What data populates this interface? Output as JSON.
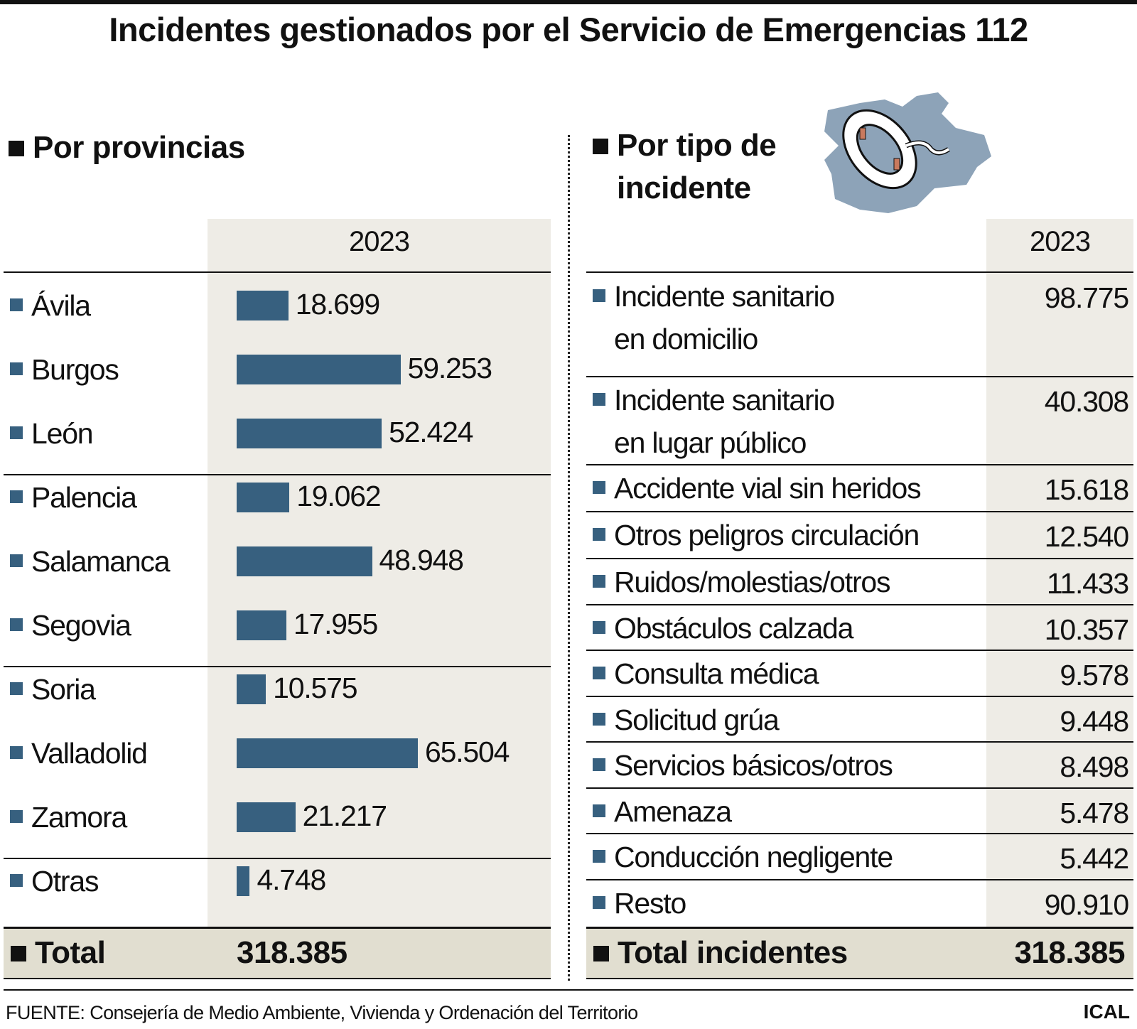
{
  "title": "Incidentes gestionados por el Servicio de Emergencias 112",
  "colors": {
    "bar": "#37607f",
    "shade": "#eeece6",
    "total_shade": "#e1ded0",
    "map": "#8da3b8"
  },
  "icon": "castilla-leon-map-lifebuoy-icon",
  "chart_data": [
    {
      "type": "bar",
      "title": "Por provincias",
      "column_header": "2023",
      "categories": [
        "Ávila",
        "Burgos",
        "León",
        "Palencia",
        "Salamanca",
        "Segovia",
        "Soria",
        "Valladolid",
        "Zamora",
        "Otras"
      ],
      "values": [
        18699,
        59253,
        52424,
        19062,
        48948,
        17955,
        10575,
        65504,
        21217,
        4748
      ],
      "value_labels": [
        "18.699",
        "59.253",
        "52.424",
        "19.062",
        "48.948",
        "17.955",
        "10.575",
        "65.504",
        "21.217",
        "4.748"
      ],
      "total_label": "Total",
      "total": "318.385"
    },
    {
      "type": "table",
      "title": "Por tipo de incidente",
      "column_header": "2023",
      "rows": [
        {
          "label": [
            "Incidente sanitario",
            "en domicilio"
          ],
          "value": "98.775"
        },
        {
          "label": [
            "Incidente sanitario",
            "en lugar público"
          ],
          "value": "40.308"
        },
        {
          "label": [
            "Accidente vial sin heridos"
          ],
          "value": "15.618"
        },
        {
          "label": [
            "Otros peligros  circulación"
          ],
          "value": "12.540"
        },
        {
          "label": [
            "Ruidos/molestias/otros"
          ],
          "value": "11.433"
        },
        {
          "label": [
            "Obstáculos calzada"
          ],
          "value": "10.357"
        },
        {
          "label": [
            "Consulta médica"
          ],
          "value": "9.578"
        },
        {
          "label": [
            "Solicitud grúa"
          ],
          "value": "9.448"
        },
        {
          "label": [
            "Servicios básicos/otros"
          ],
          "value": "8.498"
        },
        {
          "label": [
            "Amenaza"
          ],
          "value": "5.478"
        },
        {
          "label": [
            "Conducción negligente"
          ],
          "value": "5.442"
        },
        {
          "label": [
            "Resto"
          ],
          "value": "90.910"
        }
      ],
      "total_label": "Total incidentes",
      "total": "318.385"
    }
  ],
  "footer": {
    "source": "FUENTE: Consejería de Medio Ambiente, Vivienda y Ordenación del Territorio",
    "brand": "ICAL"
  }
}
